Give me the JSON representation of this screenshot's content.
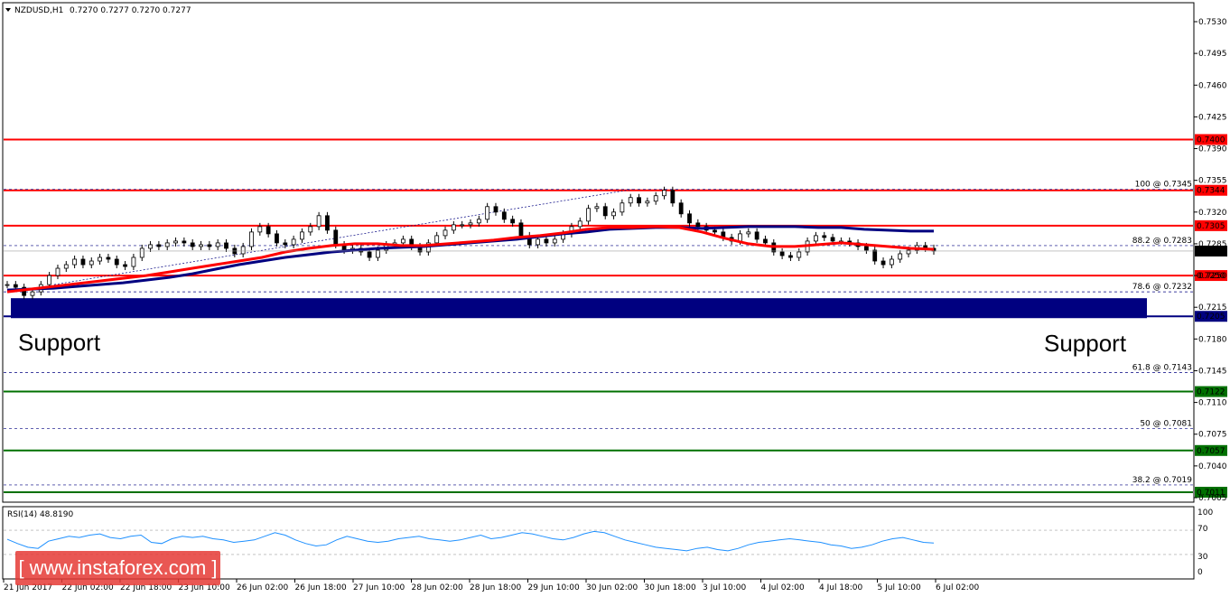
{
  "header": {
    "symbol": "NZDUSD,H1",
    "ohlc": "0.7270 0.7277 0.7270 0.7277"
  },
  "rsi": {
    "label": "RSI(14) 48.8190",
    "ticks": [
      "100",
      "70",
      "30",
      "0"
    ]
  },
  "annotations": {
    "support_left": "Support",
    "support_right": "Support"
  },
  "watermark": "[ www.instaforex.com ]",
  "colors": {
    "red": "#ff0000",
    "green": "#007000",
    "navy": "#000080",
    "rsi_line": "#1e90ff"
  },
  "chart_data": {
    "type": "candlestick",
    "price_axis": {
      "min": 0.7005,
      "max": 0.753,
      "ticks": [
        "0.7530",
        "0.7495",
        "0.7460",
        "0.7425",
        "0.7390",
        "0.7355",
        "0.7320",
        "0.7285",
        "0.7250",
        "0.7215",
        "0.7180",
        "0.7145",
        "0.7110",
        "0.7075",
        "0.7040",
        "0.7005"
      ]
    },
    "time_labels": [
      "21 Jun 2017",
      "22 Jun 02:00",
      "22 Jun 18:00",
      "23 Jun 10:00",
      "26 Jun 02:00",
      "26 Jun 18:00",
      "27 Jun 10:00",
      "28 Jun 02:00",
      "28 Jun 18:00",
      "29 Jun 10:00",
      "30 Jun 02:00",
      "30 Jun 18:00",
      "3 Jul 10:00",
      "4 Jul 02:00",
      "4 Jul 18:00",
      "5 Jul 10:00",
      "6 Jul 02:00"
    ],
    "current_price": "0.7277",
    "horizontal_levels": [
      {
        "price": 0.74,
        "label": "0.7400",
        "color": "red"
      },
      {
        "price": 0.7344,
        "label": "0.7344",
        "color": "red"
      },
      {
        "price": 0.7305,
        "label": "0.7305",
        "color": "red"
      },
      {
        "price": 0.725,
        "label": "0.7250",
        "color": "red"
      },
      {
        "price": 0.7205,
        "label": "0.7205",
        "color": "navy"
      },
      {
        "price": 0.7122,
        "label": "0.7122",
        "color": "green"
      },
      {
        "price": 0.7057,
        "label": "0.7057",
        "color": "green"
      },
      {
        "price": 0.7011,
        "label": "0.7011",
        "color": "green"
      }
    ],
    "fibonacci_levels": [
      {
        "price": 0.7345,
        "label": "100 @ 0.7345"
      },
      {
        "price": 0.7283,
        "label": "88.2 @ 0.7283"
      },
      {
        "price": 0.7232,
        "label": "78.6 @ 0.7232"
      },
      {
        "price": 0.7143,
        "label": "61.8 @ 0.7143"
      },
      {
        "price": 0.7081,
        "label": "50 @ 0.7081"
      },
      {
        "price": 0.7019,
        "label": "38.2 @ 0.7019"
      }
    ],
    "support_zone": {
      "top": 0.7225,
      "bottom": 0.7203
    },
    "close_series": [
      0.724,
      0.7237,
      0.7228,
      0.7232,
      0.724,
      0.725,
      0.7258,
      0.7262,
      0.7268,
      0.7262,
      0.7266,
      0.727,
      0.7268,
      0.7262,
      0.726,
      0.727,
      0.728,
      0.7284,
      0.7282,
      0.7286,
      0.7288,
      0.7286,
      0.7282,
      0.7284,
      0.7282,
      0.7286,
      0.728,
      0.7274,
      0.7282,
      0.7298,
      0.7304,
      0.7296,
      0.7286,
      0.7284,
      0.729,
      0.7298,
      0.7304,
      0.7316,
      0.73,
      0.7284,
      0.7278,
      0.728,
      0.7276,
      0.727,
      0.7278,
      0.7284,
      0.7286,
      0.729,
      0.7282,
      0.7276,
      0.7286,
      0.7294,
      0.73,
      0.7306,
      0.7306,
      0.7308,
      0.7312,
      0.7326,
      0.732,
      0.7312,
      0.7308,
      0.7294,
      0.7284,
      0.729,
      0.7286,
      0.729,
      0.7296,
      0.7304,
      0.731,
      0.7324,
      0.7326,
      0.7316,
      0.732,
      0.733,
      0.7336,
      0.733,
      0.7332,
      0.7338,
      0.7344,
      0.733,
      0.7318,
      0.7308,
      0.7304,
      0.73,
      0.7298,
      0.7292,
      0.7288,
      0.7296,
      0.7298,
      0.729,
      0.7286,
      0.7276,
      0.7272,
      0.727,
      0.7276,
      0.7288,
      0.7294,
      0.7292,
      0.7288,
      0.7288,
      0.7286,
      0.7282,
      0.7278,
      0.7266,
      0.7262,
      0.7268,
      0.7274,
      0.7278,
      0.7283,
      0.728,
      0.7277
    ],
    "ma_red": [
      0.7232,
      0.7235,
      0.7238,
      0.7241,
      0.7244,
      0.7247,
      0.725,
      0.7254,
      0.7258,
      0.7262,
      0.7266,
      0.727,
      0.7276,
      0.728,
      0.7283,
      0.7285,
      0.7285,
      0.7283,
      0.7283,
      0.7285,
      0.7287,
      0.7289,
      0.7292,
      0.7294,
      0.7297,
      0.7301,
      0.7303,
      0.7303,
      0.7304,
      0.7303,
      0.7298,
      0.7291,
      0.7285,
      0.7282,
      0.7282,
      0.7284,
      0.7286,
      0.7284,
      0.7282,
      0.728,
      0.7279
    ],
    "ma_navy": [
      0.7234,
      0.7235,
      0.7236,
      0.7238,
      0.724,
      0.7242,
      0.7245,
      0.7248,
      0.7252,
      0.7257,
      0.7262,
      0.7266,
      0.727,
      0.7273,
      0.7276,
      0.7278,
      0.728,
      0.7281,
      0.7282,
      0.7284,
      0.7286,
      0.7288,
      0.729,
      0.7293,
      0.7296,
      0.7298,
      0.7301,
      0.7302,
      0.7303,
      0.7303,
      0.7302,
      0.7303,
      0.7304,
      0.7304,
      0.7304,
      0.7303,
      0.7303,
      0.7301,
      0.73,
      0.7299,
      0.7299
    ],
    "rsi_values": [
      55,
      48,
      42,
      40,
      52,
      56,
      60,
      58,
      62,
      64,
      58,
      56,
      60,
      62,
      50,
      48,
      56,
      60,
      58,
      60,
      56,
      54,
      50,
      52,
      54,
      60,
      66,
      62,
      54,
      48,
      44,
      46,
      54,
      60,
      56,
      52,
      50,
      52,
      56,
      58,
      60,
      56,
      54,
      52,
      54,
      58,
      62,
      56,
      58,
      62,
      66,
      64,
      60,
      56,
      54,
      58,
      64,
      68,
      66,
      60,
      54,
      50,
      46,
      42,
      40,
      38,
      36,
      40,
      42,
      38,
      36,
      40,
      46,
      50,
      52,
      54,
      56,
      54,
      52,
      50,
      46,
      44,
      40,
      42,
      46,
      52,
      56,
      58,
      54,
      50,
      49
    ]
  }
}
